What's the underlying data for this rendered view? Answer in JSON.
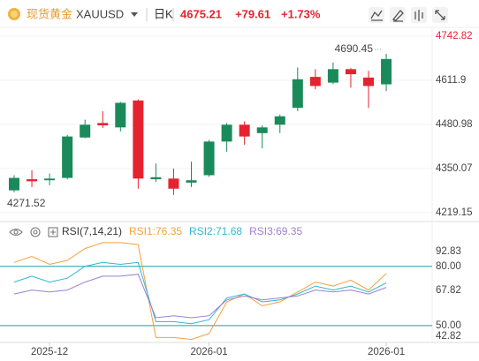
{
  "header": {
    "name": "现货黄金",
    "symbol": "XAUUSD",
    "period": "日K",
    "price": "4675.21",
    "change": "+79.61",
    "change_pct": "+1.73%"
  },
  "chart_data": [
    {
      "type": "candlestick",
      "up_color": "#1b8a5a",
      "down_color": "#e5232f",
      "open": [
        4285,
        4318,
        4315,
        4322,
        4442,
        4485,
        4472,
        4552,
        4318,
        4320,
        4308,
        4330,
        4430,
        4480,
        4455,
        4480,
        4530,
        4622,
        4605,
        4645,
        4620,
        4600
      ],
      "high": [
        4330,
        4345,
        4335,
        4450,
        4495,
        4520,
        4548,
        4555,
        4365,
        4350,
        4370,
        4435,
        4485,
        4490,
        4478,
        4510,
        4650,
        4645,
        4665,
        4648,
        4640,
        4690.45
      ],
      "low": [
        4280,
        4295,
        4300,
        4318,
        4440,
        4470,
        4460,
        4290,
        4310,
        4271.52,
        4295,
        4325,
        4400,
        4420,
        4410,
        4455,
        4520,
        4585,
        4600,
        4590,
        4530,
        4580
      ],
      "close": [
        4322,
        4312,
        4320,
        4445,
        4480,
        4478,
        4545,
        4320,
        4324,
        4290,
        4315,
        4430,
        4480,
        4445,
        4472,
        4505,
        4615,
        4595,
        4645,
        4630,
        4595,
        4675.21
      ],
      "ylim": [
        4195,
        4777
      ],
      "yticks": [
        4742.82,
        4611.9,
        4480.98,
        4350.07,
        4219.15
      ],
      "annotations": [
        4690.45,
        4271.52
      ],
      "grid": true
    },
    {
      "type": "line",
      "title": "RSI(7,14,21)",
      "categories": [
        null,
        null,
        "2025-12",
        null,
        null,
        null,
        null,
        null,
        null,
        null,
        null,
        "2026-01",
        null,
        null,
        null,
        null,
        null,
        null,
        null,
        null,
        null,
        "2026-01"
      ],
      "series": [
        {
          "name": "RSI1:76.35",
          "color": "#f5a03c",
          "values": [
            82,
            85,
            81,
            83,
            89,
            92,
            92,
            91,
            44,
            44,
            43,
            46,
            62,
            66,
            60,
            62,
            67,
            72,
            70,
            73,
            68,
            76.35
          ]
        },
        {
          "name": "RSI2:71.68",
          "color": "#2fb8d0",
          "values": [
            72,
            75,
            72,
            74,
            80,
            82,
            81,
            82,
            52,
            52,
            51,
            53,
            64,
            66,
            62,
            63,
            66,
            70,
            68,
            70,
            67,
            71.68
          ]
        },
        {
          "name": "RSI3:69.35",
          "color": "#9b7fd4",
          "values": [
            66,
            68,
            67,
            68,
            72,
            75,
            75,
            76,
            54,
            55,
            54,
            55,
            63,
            65,
            63,
            64,
            65,
            68,
            67,
            68,
            66,
            69.35
          ]
        }
      ],
      "ylim": [
        42.82,
        92.83
      ],
      "yticks": [
        92.83,
        {
          "value": 80,
          "label": "80.00"
        },
        67.82,
        {
          "value": 50,
          "label": "50.00"
        },
        42.82
      ],
      "hlines": [
        80,
        50
      ],
      "hline_color": "#1a9bb5"
    }
  ]
}
